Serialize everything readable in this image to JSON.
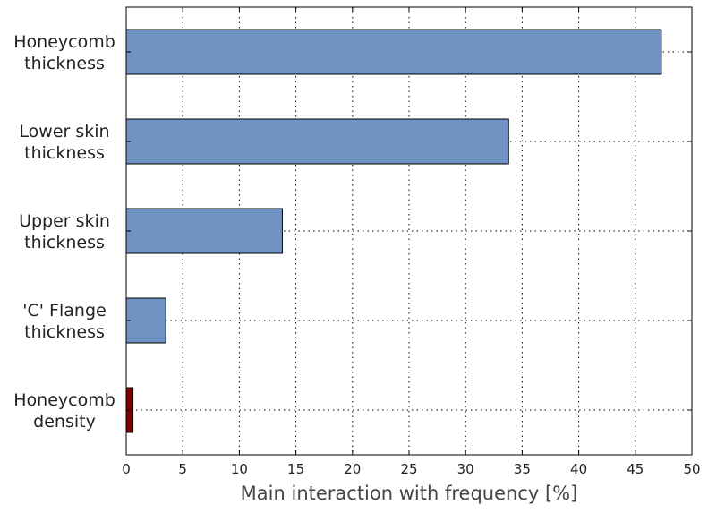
{
  "chart_data": {
    "type": "bar",
    "orientation": "horizontal",
    "categories": [
      [
        "Honeycomb",
        "thickness"
      ],
      [
        "Lower skin",
        "thickness"
      ],
      [
        "Upper skin",
        "thickness"
      ],
      [
        "'C' Flange",
        "thickness"
      ],
      [
        "Honeycomb",
        "density"
      ]
    ],
    "values": [
      47.3,
      33.8,
      13.8,
      3.5,
      0.6
    ],
    "bar_colors": [
      "#7093c4",
      "#7093c4",
      "#7093c4",
      "#7093c4",
      "#7a0000"
    ],
    "xlabel": "Main interaction with frequency [%]",
    "ylabel": "",
    "xlim": [
      0,
      50
    ],
    "xticks": [
      0,
      5,
      10,
      15,
      20,
      25,
      30,
      35,
      40,
      45,
      50
    ],
    "grid": true,
    "grid_style": "dotted"
  }
}
